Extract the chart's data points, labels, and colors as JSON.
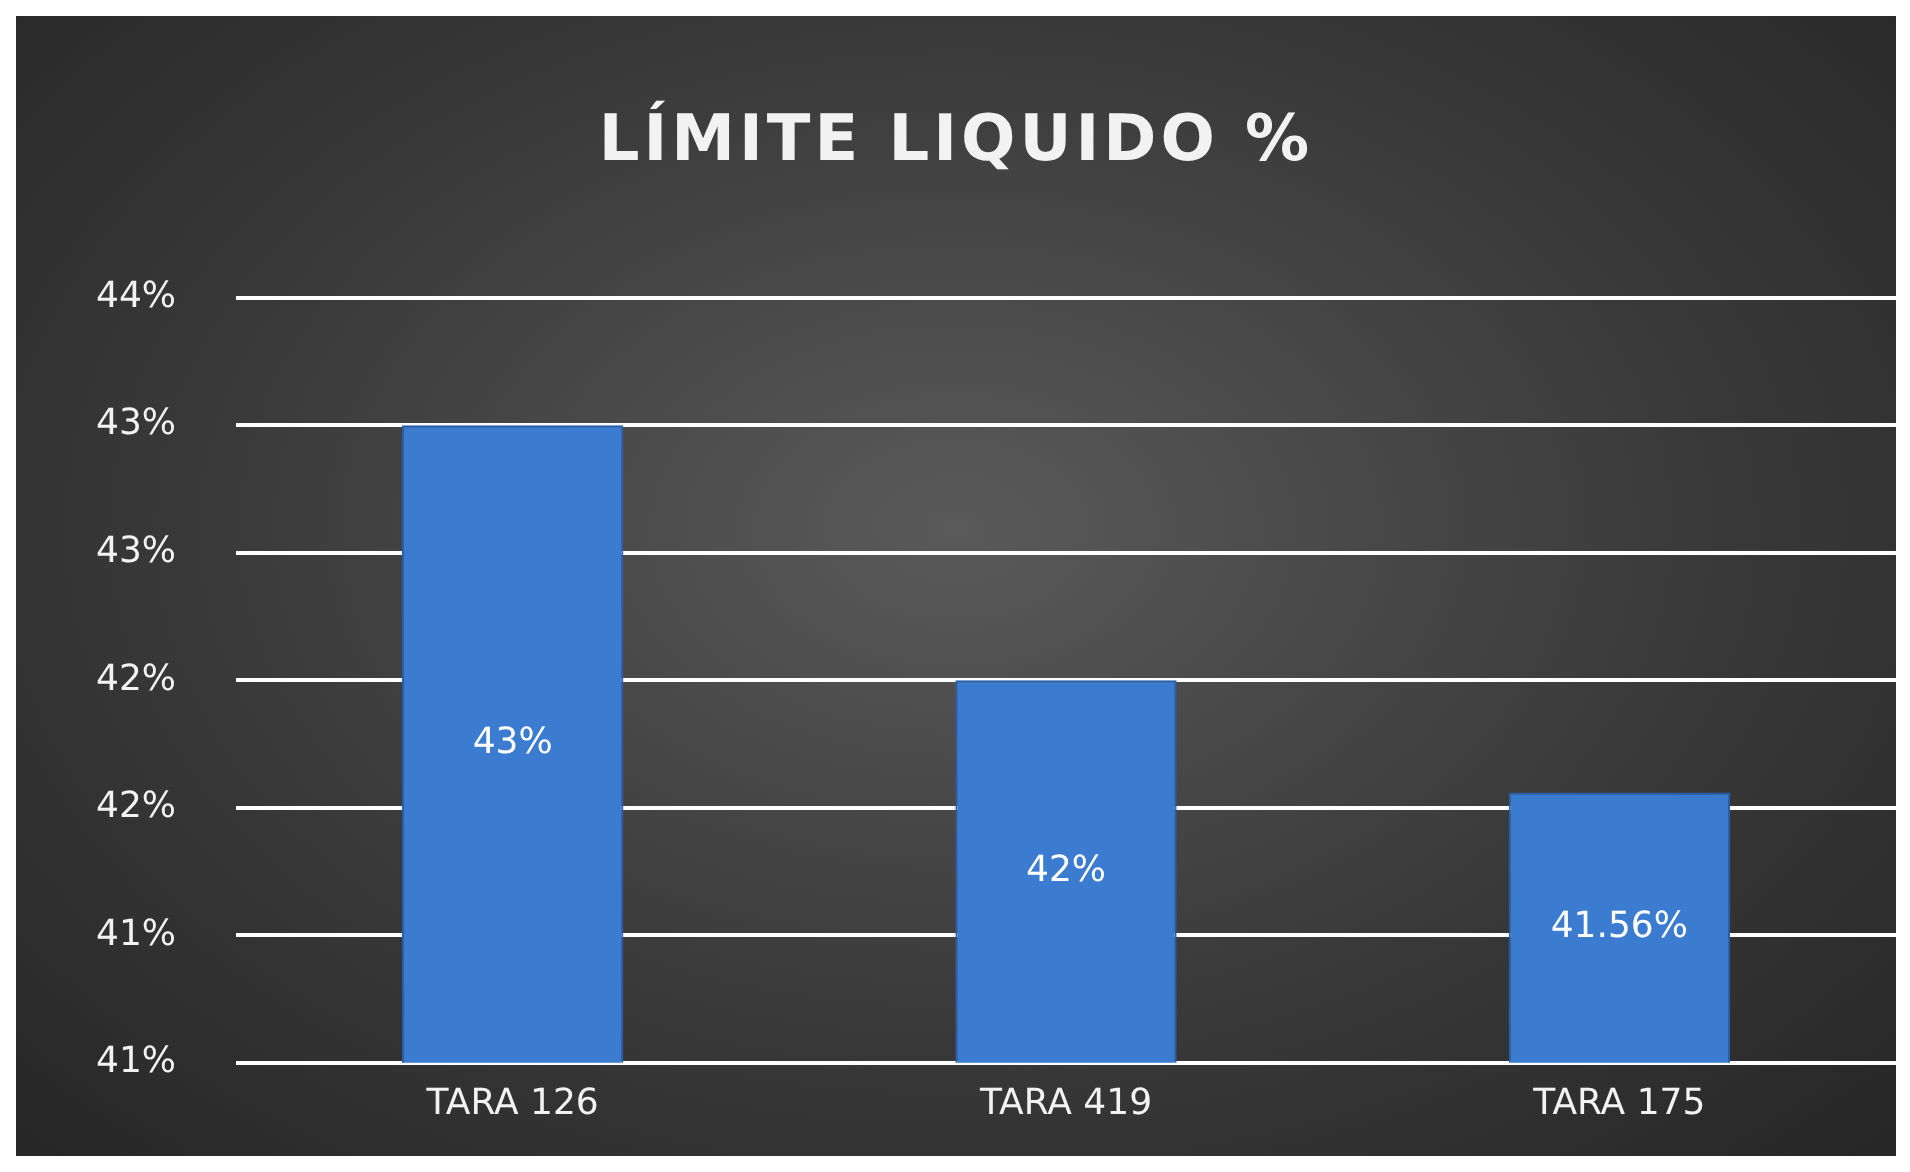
{
  "chart_data": {
    "type": "bar",
    "title": "LÍMITE LIQUIDO %",
    "categories": [
      "TARA 126",
      "TARA 419",
      "TARA 175"
    ],
    "values": [
      43,
      42,
      41.56
    ],
    "color": "#3b7bd0",
    "value_labels": [
      "43%",
      "42%",
      "41.56%"
    ],
    "ylim": [
      40.5,
      43.5
    ],
    "yticks": [
      {
        "value": 40.5,
        "label": "41%"
      },
      {
        "value": 41,
        "label": "41%"
      },
      {
        "value": 41.5,
        "label": "42%"
      },
      {
        "value": 42,
        "label": "42%"
      },
      {
        "value": 42.5,
        "label": "43%"
      },
      {
        "value": 43,
        "label": "43%"
      },
      {
        "value": 43.5,
        "label": "44%"
      }
    ],
    "grid": "y",
    "legend": false
  }
}
